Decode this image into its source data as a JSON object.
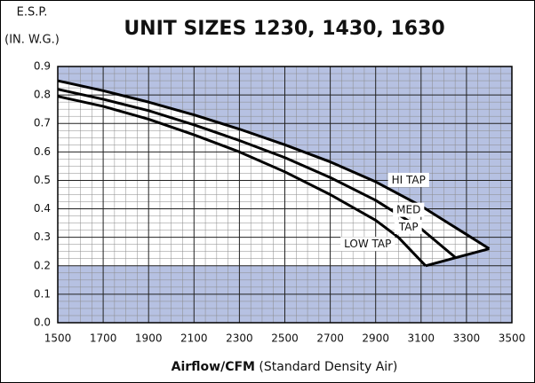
{
  "chart_data": {
    "type": "line",
    "title": "UNIT SIZES 1230, 1430, 1630",
    "ylabel": [
      "E.S.P.",
      "(IN. W.G.)"
    ],
    "xlabel": "Airflow/CFM",
    "xlabel_note": "(Standard Density Air)",
    "xlim": [
      1500,
      3500
    ],
    "xticks": [
      1500,
      1700,
      1900,
      2100,
      2300,
      2500,
      2700,
      2900,
      3100,
      3300,
      3500
    ],
    "ylim": [
      0,
      0.9
    ],
    "yticks": [
      {
        "value": 0,
        "label": "0.0"
      },
      0.1,
      0.2,
      0.3,
      0.4,
      0.5,
      0.6,
      0.7,
      0.8,
      0.9
    ],
    "grid": true,
    "shade_color": "#b6c1e2",
    "series": [
      {
        "color": "#000000",
        "x": [
          1500,
          1700,
          1900,
          2100,
          2300,
          2500,
          2700,
          2900,
          3100,
          3300,
          3400
        ],
        "values": [
          0.85,
          0.815,
          0.775,
          0.73,
          0.68,
          0.625,
          0.565,
          0.495,
          0.41,
          0.31,
          0.26
        ]
      },
      {
        "color": "#000000",
        "x": [
          1500,
          1700,
          1900,
          2100,
          2300,
          2500,
          2700,
          2900,
          3100,
          3250
        ],
        "values": [
          0.82,
          0.785,
          0.745,
          0.695,
          0.64,
          0.58,
          0.51,
          0.43,
          0.33,
          0.23
        ]
      },
      {
        "color": "#000000",
        "x": [
          1500,
          1700,
          1900,
          2100,
          2300,
          2500,
          2700,
          2900,
          3000,
          3120
        ],
        "values": [
          0.795,
          0.76,
          0.715,
          0.66,
          0.6,
          0.53,
          0.45,
          0.36,
          0.3,
          0.2
        ]
      },
      {
        "color": "#000000",
        "x": [
          3120,
          3400
        ],
        "values": [
          0.2,
          0.26
        ]
      }
    ],
    "region_floor": 0.2,
    "annotations": [
      "HI TAP",
      "MED",
      "TAP",
      "LOW TAP"
    ]
  }
}
